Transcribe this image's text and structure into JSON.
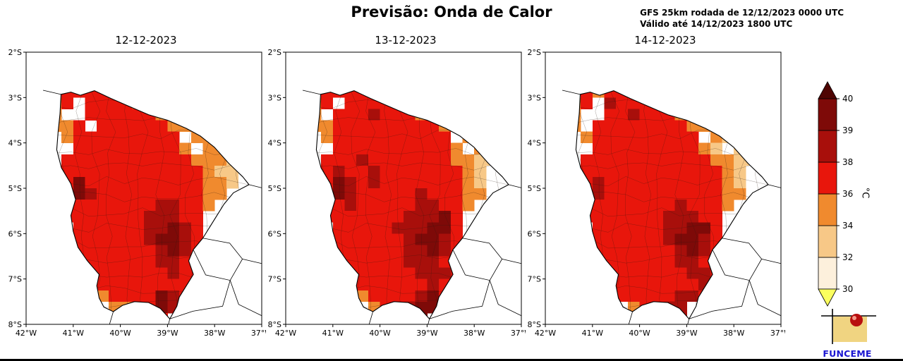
{
  "header": {
    "title": "Previsão: Onda de Calor",
    "run_info_line1": "GFS 25km rodada de 12/12/2023 0000 UTC",
    "run_info_line2": "Válido até 14/12/2023 1800 UTC"
  },
  "branding": {
    "logo_text": "FUNCEME"
  },
  "chart_data": {
    "type": "heatmap",
    "title": "Previsão: Onda de Calor",
    "description": "Three-panel forecast maps of maximum temperature (°C) over Ceará, Brazil",
    "x_tick_labels": [
      "42°W",
      "41°W",
      "40°W",
      "39°W",
      "38°W",
      "37°W"
    ],
    "y_tick_labels": [
      "2°S",
      "3°S",
      "4°S",
      "5°S",
      "6°S",
      "7°S",
      "8°S"
    ],
    "xlim_deg_w": [
      42,
      37
    ],
    "ylim_deg_s": [
      2,
      8
    ],
    "grid_meta": {
      "lon_west_start_deg_w": 41.5,
      "lat_north_start_deg_s": 2.75,
      "cell_size_deg": 0.25,
      "cols": 18,
      "rows": 21
    },
    "classes": {
      "l": "#f7c887",
      "o": "#f08a2e",
      "r": "#e8160c",
      "d": "#a80f0b",
      "D": "#7e0a08"
    },
    "class_temp_ranges_c": {
      "l": "32-34",
      "o": "34-36",
      "r": "36-38",
      "d": "38-39",
      "D": "39-40",
      ".": "no-data"
    },
    "class_values_c": {
      "l": 33,
      "o": 35,
      "r": 37,
      "d": 38.5,
      "D": 39.5
    },
    "panels": [
      {
        "date": "12-12-2023",
        "grid": [
          ".rrrroo...........",
          "or.rrrroo.........",
          "o..rrrrrroo.......",
          "oor.rrrrrrooo.....",
          ".orrrrrrrrr.oo....",
          "..rrrrrrrrro.oo...",
          ".rrrrrrrrrrroool..",
          ".rrrrrrrrrrrroll..",
          ".rDrrrrrrrrrrool..",
          ".rDdrrrrrrrrroo...",
          ".rrrrrrrrddrro....",
          ".rrrrrrrdddrr.....",
          "..rrrrrrddDdr.....",
          "..rrrrrrdDDdr.....",
          "..rrrrrrrdDdr.....",
          "...rrrrrrddrr.....",
          "...rrrrrrrdrr.....",
          "...rrrrrrrrrr.....",
          "....orrrrDdr......",
          ".....oorrDd.......",
          "........rr........"
        ]
      },
      {
        "date": "13-12-2023",
        "grid": [
          ".rrrrro...........",
          "or.rrrrro.........",
          "o.rrrdrrroo.......",
          "oorrrrrrrrroo.....",
          ".orrrrrrrrrr.oo...",
          "..rrrrrrrrrro.oo..",
          ".rrrdrrrrrrrooll..",
          ".rdrrdrrrrrrrol...",
          ".rDdrdrrrrrrrol...",
          ".rDdrrrrrdrrroo...",
          ".rrdrrrrrddrro....",
          ".rrrrrrrdddDr.....",
          "..rrrrrdddDDr.....",
          "..rrrrrrdDDdr.....",
          "..rrrrrrddDdr.....",
          "...rrrrrdddrr.....",
          "...rrrrrrdddr.....",
          "...rrrrrrrdrr.....",
          "....orrrrdDr......",
          ".....orrdDD.......",
          "........dD........"
        ]
      },
      {
        "date": "14-12-2023",
        "grid": [
          ".rorrro...........",
          "or.drrrro.........",
          "o..rrdrrroo.......",
          "o.rrrrrrrrooo.....",
          ".orrrrrrrrr.ol....",
          "..rrrrrrrrrol.ll..",
          ".rrrrrrrrrrrooll..",
          ".rrrrrrrrrrrrol...",
          ".rdrrrrrrrrrrol...",
          ".rdrrrrrrrrrroo...",
          ".rrrrrrrrdrrro....",
          ".rrrrrrrdddrr.....",
          "..rrrrrrddDDr.....",
          "..rrrrrrdDDdr.....",
          "..rrrrrrrdDdr.....",
          "...rrrrrrddrr.....",
          "...rrrrrrrddr.....",
          "...rrrrrrrrdr.....",
          "....rrrrrddr......",
          ".....orrdd........",
          "........rd........"
        ]
      }
    ],
    "colorbar": {
      "unit": "°C",
      "levels": [
        30,
        32,
        34,
        36,
        38,
        39,
        40
      ],
      "tick_labels": [
        "30",
        "32",
        "34",
        "36",
        "38",
        "39",
        "40"
      ],
      "segment_colors": [
        "#fdf0dc",
        "#f7c887",
        "#f08a2e",
        "#e8160c",
        "#a80f0b",
        "#7e0a08"
      ],
      "under_color": "#fbff5f",
      "over_color": "#4f0503",
      "orientation": "vertical",
      "extend": "both"
    },
    "legend_position": "right"
  }
}
